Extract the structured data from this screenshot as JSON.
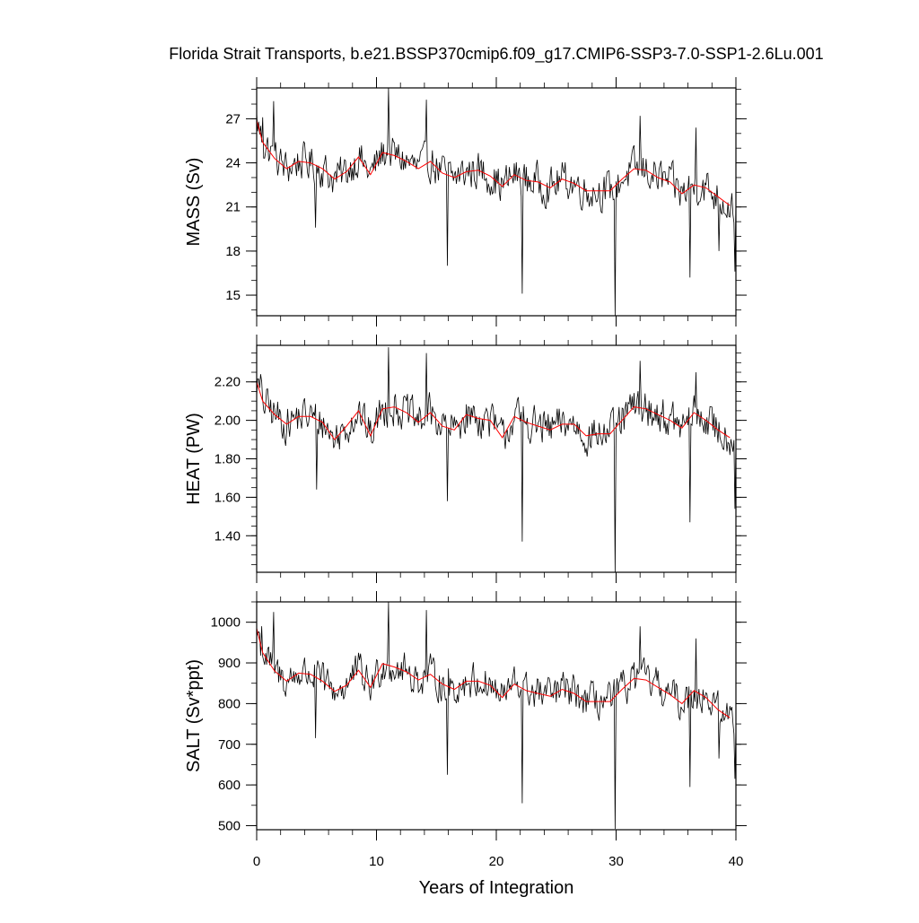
{
  "chart_data": {
    "type": "line",
    "title": "Florida Strait Transports, b.e21.BSSP370cmip6.f09_g17.CMIP6-SSP3-7.0-SSP1-2.6Lu.001",
    "xlabel": "Years of Integration",
    "xlim": [
      0,
      40
    ],
    "x_ticks": [
      0,
      10,
      20,
      30,
      40
    ],
    "x_tick_labels": [
      "0",
      "10",
      "20",
      "30",
      "40"
    ],
    "series_colors": {
      "monthly": "#000000",
      "annual_mean": "#ff0000"
    },
    "panels": [
      {
        "ylabel": "MASS (Sv)",
        "ylim": [
          13.6,
          29.1
        ],
        "y_ticks": [
          15,
          18,
          21,
          24,
          27
        ],
        "y_tick_labels": [
          "15",
          "18",
          "21",
          "24",
          "27"
        ],
        "minor_step": 1,
        "annual_mean": {
          "x": [
            0.0,
            0.5,
            1.5,
            2.5,
            3.5,
            4.5,
            5.5,
            6.5,
            7.5,
            8.5,
            9.5,
            10.5,
            11.5,
            12.5,
            13.5,
            14.5,
            15.5,
            16.5,
            17.5,
            18.5,
            19.5,
            20.5,
            21.5,
            22.5,
            23.5,
            24.5,
            25.5,
            26.5,
            27.5,
            28.5,
            29.5,
            30.5,
            31.5,
            32.5,
            33.5,
            34.5,
            35.5,
            36.5,
            37.5,
            38.5,
            39.5
          ],
          "y": [
            26.9,
            25.4,
            24.3,
            23.6,
            24.1,
            24.0,
            23.6,
            22.9,
            23.4,
            24.4,
            23.2,
            24.7,
            24.5,
            24.1,
            23.6,
            24.1,
            23.3,
            23.0,
            23.4,
            23.5,
            23.1,
            22.4,
            23.2,
            22.8,
            22.7,
            22.3,
            22.9,
            22.6,
            22.1,
            22.1,
            22.1,
            22.9,
            23.6,
            23.5,
            23.0,
            22.7,
            21.9,
            22.5,
            22.3,
            21.7,
            21.1
          ]
        },
        "monthly_params": {
          "amplitude": 1.1,
          "spikes": [
            [
              0.5,
              27.1
            ],
            [
              1.4,
              28.2
            ],
            [
              4.9,
              19.6
            ],
            [
              11.0,
              29.1
            ],
            [
              14.2,
              28.3
            ],
            [
              15.9,
              17.0
            ],
            [
              22.2,
              15.1
            ],
            [
              29.9,
              13.6
            ],
            [
              32.0,
              27.2
            ],
            [
              36.2,
              16.2
            ],
            [
              36.7,
              26.4
            ],
            [
              38.6,
              18.0
            ],
            [
              39.95,
              16.6
            ]
          ]
        }
      },
      {
        "ylabel": "HEAT (PW)",
        "ylim": [
          1.21,
          2.39
        ],
        "y_ticks": [
          1.4,
          1.6,
          1.8,
          2.0,
          2.2
        ],
        "y_tick_labels": [
          "1.40",
          "1.60",
          "1.80",
          "2.00",
          "2.20"
        ],
        "minor_step": 0.05,
        "annual_mean": {
          "x": [
            0.0,
            0.5,
            1.5,
            2.5,
            3.5,
            4.5,
            5.5,
            6.5,
            7.5,
            8.5,
            9.5,
            10.5,
            11.5,
            12.5,
            13.5,
            14.5,
            15.5,
            16.5,
            17.5,
            18.5,
            19.5,
            20.5,
            21.5,
            22.5,
            23.5,
            24.5,
            25.5,
            26.5,
            27.5,
            28.5,
            29.5,
            30.5,
            31.5,
            32.5,
            33.5,
            34.5,
            35.5,
            36.5,
            37.5,
            38.5,
            39.5
          ],
          "y": [
            2.2,
            2.1,
            2.03,
            1.98,
            2.02,
            2.02,
            1.99,
            1.9,
            1.97,
            2.05,
            1.92,
            2.06,
            2.07,
            2.04,
            1.99,
            2.04,
            1.97,
            1.95,
            2.03,
            2.01,
            2.0,
            1.91,
            2.02,
            1.99,
            1.97,
            1.95,
            1.98,
            1.98,
            1.92,
            1.93,
            1.93,
            2.0,
            2.07,
            2.06,
            2.03,
            2.0,
            1.96,
            2.04,
            2.0,
            1.95,
            1.91
          ]
        },
        "monthly_params": {
          "amplitude": 0.085,
          "spikes": [
            [
              0.3,
              2.24
            ],
            [
              5.0,
              1.64
            ],
            [
              11.0,
              2.38
            ],
            [
              14.2,
              2.35
            ],
            [
              15.9,
              1.58
            ],
            [
              22.2,
              1.37
            ],
            [
              29.9,
              1.21
            ],
            [
              32.0,
              2.31
            ],
            [
              36.2,
              1.47
            ],
            [
              36.7,
              2.25
            ],
            [
              39.95,
              1.54
            ]
          ]
        }
      },
      {
        "ylabel": "SALT (Sv*ppt)",
        "ylim": [
          490,
          1050
        ],
        "y_ticks": [
          500,
          600,
          700,
          800,
          900,
          1000
        ],
        "y_tick_labels": [
          "500",
          "600",
          "700",
          "800",
          "900",
          "1000"
        ],
        "minor_step": 50,
        "annual_mean": {
          "x": [
            0.0,
            0.5,
            1.5,
            2.5,
            3.5,
            4.5,
            5.5,
            6.5,
            7.5,
            8.5,
            9.5,
            10.5,
            11.5,
            12.5,
            13.5,
            14.5,
            15.5,
            16.5,
            17.5,
            18.5,
            19.5,
            20.5,
            21.5,
            22.5,
            23.5,
            24.5,
            25.5,
            26.5,
            27.5,
            28.5,
            29.5,
            30.5,
            31.5,
            32.5,
            33.5,
            34.5,
            35.5,
            36.5,
            37.5,
            38.5,
            39.5
          ],
          "y": [
            985,
            925,
            880,
            855,
            875,
            872,
            855,
            830,
            845,
            882,
            840,
            898,
            890,
            878,
            858,
            872,
            848,
            835,
            855,
            855,
            845,
            815,
            848,
            832,
            825,
            818,
            835,
            825,
            805,
            805,
            805,
            835,
            862,
            858,
            840,
            822,
            800,
            832,
            815,
            785,
            765
          ]
        },
        "monthly_params": {
          "amplitude": 38,
          "spikes": [
            [
              0.4,
              990
            ],
            [
              1.4,
              1025
            ],
            [
              4.9,
              715
            ],
            [
              11.0,
              1050
            ],
            [
              14.2,
              1030
            ],
            [
              15.9,
              625
            ],
            [
              22.2,
              555
            ],
            [
              29.9,
              492
            ],
            [
              32.0,
              990
            ],
            [
              36.2,
              595
            ],
            [
              36.7,
              960
            ],
            [
              38.6,
              665
            ],
            [
              39.95,
              615
            ]
          ]
        }
      }
    ]
  }
}
